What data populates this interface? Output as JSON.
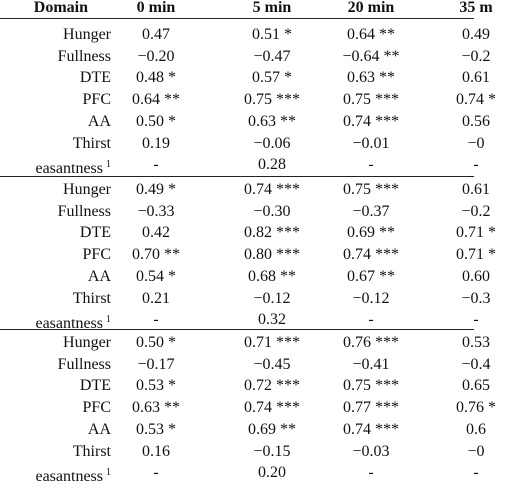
{
  "header": {
    "domain": "Domain",
    "cols": [
      "0 min",
      "5 min",
      "20 min",
      "35 m"
    ]
  },
  "groups": [
    {
      "rows": [
        {
          "label": "Hunger",
          "values": [
            "0.47",
            "0.51 *",
            "0.64 **",
            "0.49"
          ]
        },
        {
          "label": "Fullness",
          "values": [
            "−0.20",
            "−0.47",
            "−0.64 **",
            "−0.2"
          ]
        },
        {
          "label": "DTE",
          "values": [
            "0.48 *",
            "0.57 *",
            "0.63 **",
            "0.61"
          ]
        },
        {
          "label": "PFC",
          "values": [
            "0.64 **",
            "0.75 ***",
            "0.75 ***",
            "0.74 *"
          ]
        },
        {
          "label": "AA",
          "values": [
            "0.50 *",
            "0.63 **",
            "0.74 ***",
            "0.56"
          ]
        },
        {
          "label": "Thirst",
          "values": [
            "0.19",
            "−0.06",
            "−0.01",
            "−0"
          ]
        },
        {
          "label": "easantness",
          "label_sup": "1",
          "values": [
            "-",
            "0.28",
            "-",
            "-"
          ]
        }
      ]
    },
    {
      "rows": [
        {
          "label": "Hunger",
          "values": [
            "0.49 *",
            "0.74 ***",
            "0.75 ***",
            "0.61"
          ]
        },
        {
          "label": "Fullness",
          "values": [
            "−0.33",
            "−0.30",
            "−0.37",
            "−0.2"
          ]
        },
        {
          "label": "DTE",
          "values": [
            "0.42",
            "0.82 ***",
            "0.69 **",
            "0.71 *"
          ]
        },
        {
          "label": "PFC",
          "values": [
            "0.70 **",
            "0.80 ***",
            "0.74 ***",
            "0.71 *"
          ]
        },
        {
          "label": "AA",
          "values": [
            "0.54 *",
            "0.68 **",
            "0.67 **",
            "0.60"
          ]
        },
        {
          "label": "Thirst",
          "values": [
            "0.21",
            "−0.12",
            "−0.12",
            "−0.3"
          ]
        },
        {
          "label": "easantness",
          "label_sup": "1",
          "values": [
            "-",
            "0.32",
            "-",
            "-"
          ]
        }
      ]
    },
    {
      "rows": [
        {
          "label": "Hunger",
          "values": [
            "0.50 *",
            "0.71 ***",
            "0.76 ***",
            "0.53"
          ]
        },
        {
          "label": "Fullness",
          "values": [
            "−0.17",
            "−0.45",
            "−0.41",
            "−0.4"
          ]
        },
        {
          "label": "DTE",
          "values": [
            "0.53 *",
            "0.72 ***",
            "0.75 ***",
            "0.65"
          ]
        },
        {
          "label": "PFC",
          "values": [
            "0.63 **",
            "0.74 ***",
            "0.77 ***",
            "0.76 *"
          ]
        },
        {
          "label": "AA",
          "values": [
            "0.53 *",
            "0.69 **",
            "0.74 ***",
            "0.6"
          ]
        },
        {
          "label": "Thirst",
          "values": [
            "0.16",
            "−0.15",
            "−0.03",
            "−0"
          ]
        },
        {
          "label": "easantness",
          "label_sup": "1",
          "values": [
            "-",
            "0.20",
            "-",
            "-"
          ]
        }
      ]
    }
  ]
}
